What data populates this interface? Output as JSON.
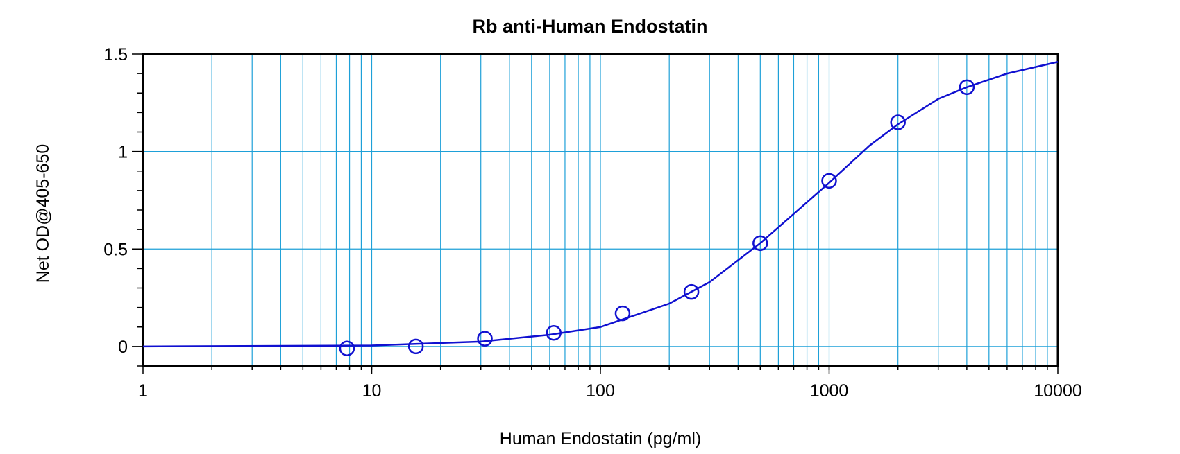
{
  "chart_data": {
    "type": "scatter",
    "title": "Rb anti-Human Endostatin",
    "xlabel": "Human Endostatin (pg/ml)",
    "ylabel": "Net OD@405-650",
    "x_scale": "log",
    "xlim": [
      1,
      10000
    ],
    "ylim": [
      -0.1,
      1.5
    ],
    "x_ticks": [
      "1",
      "10",
      "100",
      "1000",
      "10000"
    ],
    "y_ticks": [
      "0",
      "0.5",
      "1",
      "1.5"
    ],
    "grid": true,
    "colors": {
      "series": "#1010d0",
      "grid": "#1ea0d8",
      "frame": "#000000"
    },
    "series": [
      {
        "x": [
          7.8,
          15.6,
          31.25,
          62.5,
          125,
          250,
          500,
          1000,
          2000,
          4000
        ],
        "y": [
          -0.01,
          0.0,
          0.04,
          0.07,
          0.17,
          0.28,
          0.53,
          0.85,
          1.15,
          1.33
        ]
      }
    ],
    "fit_curve": {
      "x": [
        1,
        10,
        30,
        60,
        100,
        200,
        300,
        500,
        700,
        1000,
        1500,
        2000,
        3000,
        4000,
        6000,
        10000
      ],
      "y": [
        0.0,
        0.005,
        0.025,
        0.06,
        0.1,
        0.22,
        0.33,
        0.53,
        0.68,
        0.84,
        1.03,
        1.14,
        1.27,
        1.33,
        1.4,
        1.46
      ]
    }
  }
}
